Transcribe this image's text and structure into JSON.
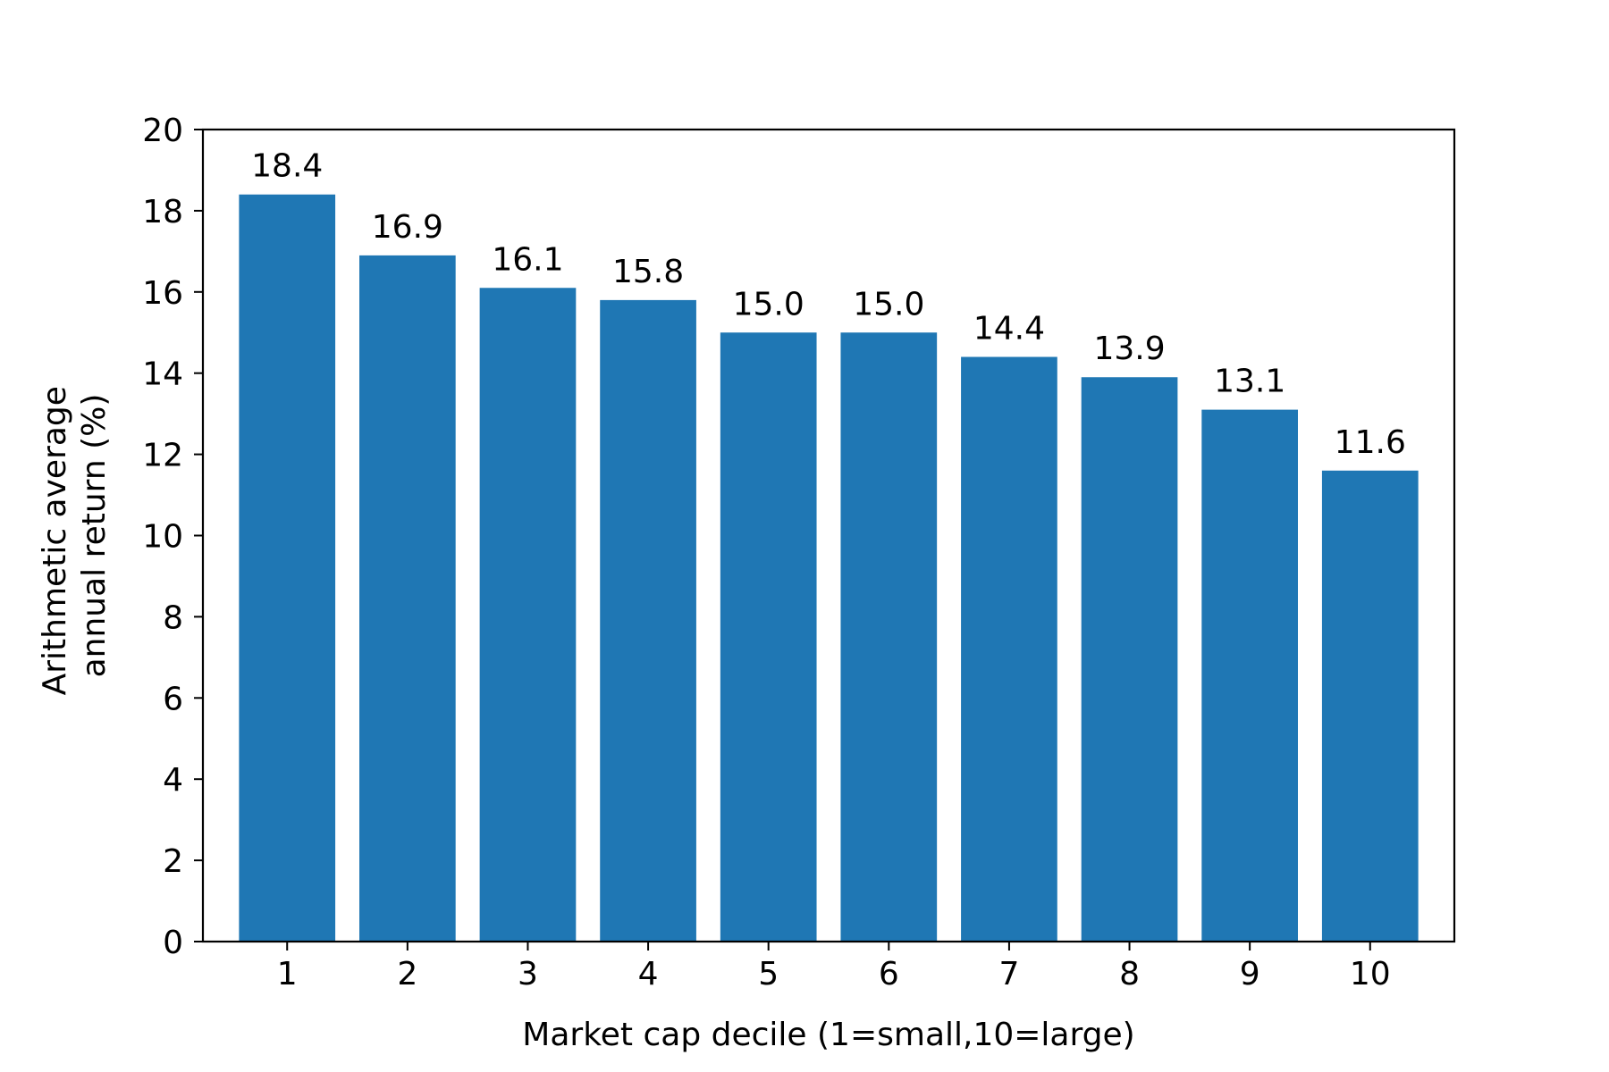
{
  "chart_data": {
    "type": "bar",
    "title": "",
    "xlabel": "Market cap decile (1=small,10=large)",
    "ylabel_lines": [
      "Arithmetic average",
      "annual return (%)"
    ],
    "categories": [
      "1",
      "2",
      "3",
      "4",
      "5",
      "6",
      "7",
      "8",
      "9",
      "10"
    ],
    "values": [
      18.4,
      16.9,
      16.1,
      15.8,
      15.0,
      15.0,
      14.4,
      13.9,
      13.1,
      11.6
    ],
    "value_labels": [
      "18.4",
      "16.9",
      "16.1",
      "15.8",
      "15.0",
      "15.0",
      "14.4",
      "13.9",
      "13.1",
      "11.6"
    ],
    "ylim": [
      0,
      20
    ],
    "yticks": [
      "0",
      "2",
      "4",
      "6",
      "8",
      "10",
      "12",
      "14",
      "16",
      "18",
      "20"
    ],
    "grid": false,
    "bar_color": "#1f77b4"
  }
}
